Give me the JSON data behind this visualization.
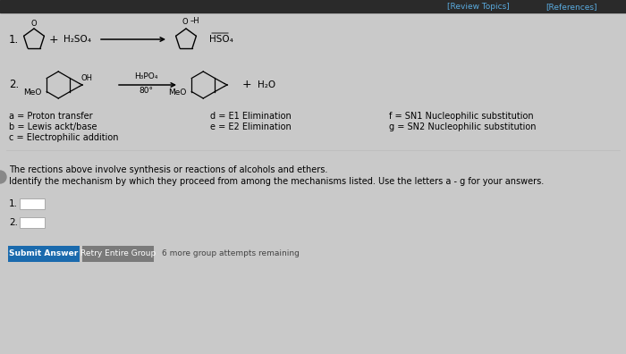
{
  "bg_color": "#c9c9c9",
  "top_bar_color": "#2a2a2a",
  "review_topics_text": "[Review Topics]",
  "references_text": "[References]",
  "top_link_color": "#5aabdf",
  "reaction1_label": "1.",
  "reaction2_label": "2.",
  "mechanisms_col1": [
    "a = Proton transfer",
    "b = Lewis ackt/base",
    "c = Electrophilic addition"
  ],
  "mechanisms_col2": [
    "d = E1 Elimination",
    "e = E2 Elimination"
  ],
  "mechanisms_col3": [
    "f = Sₙ₁ Nucleophilic substitution",
    "g = Sₙ₂ Nucleophilic substitution"
  ],
  "mechanisms_col3_raw": [
    "f = SN1 Nucleophilic substitution",
    "g = SN2 Nucleophilic substitution"
  ],
  "paragraph1": "The rections above involve synthesis or reactions of alcohols and ethers.",
  "paragraph2": "Identify the mechanism by which they proceed from among the mechanisms listed. Use the letters a - g for your answers.",
  "input_label1": "1.",
  "input_label2": "2.",
  "btn_submit_text": "Submit Answer",
  "btn_submit_color": "#1a6aad",
  "btn_retry_text": "Retry Entire Group",
  "btn_retry_color": "#7a7a7a",
  "btn_attempts_text": "6 more group attempts remaining",
  "rxn1_reagent": "H₂SO₄",
  "rxn2_reagent": "H₃PO₄",
  "rxn2_condition": "80°",
  "rxn2_meo1": "MeO",
  "rxn2_meo2": "MeO",
  "rxn1_product1": "O–H",
  "rxn1_product2": "HSO₄",
  "rxn2_plus_water": "+    H₂O"
}
